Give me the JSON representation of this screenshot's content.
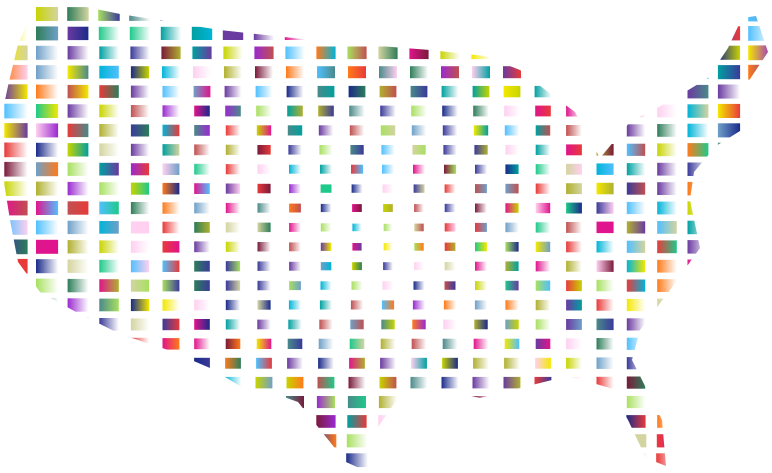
{
  "artwork": {
    "subject": "united-states-map-mosaic",
    "background": "#ffffff",
    "palette": [
      "#e0148c",
      "#1fc98a",
      "#1a2a8a",
      "#00b4d8",
      "#c8d400",
      "#f4e800",
      "#7a1a3a",
      "#2e7d5a",
      "#6fa0c8",
      "#ff7a1a",
      "#9a2ad0",
      "#a8e060",
      "#c05050",
      "#00a0a0",
      "#ffd0f0",
      "#3a3a9a",
      "#d4d4a0",
      "#4a8a8a",
      "#e83a3a",
      "#6a3aa0",
      "#50c0ff",
      "#b0b030"
    ]
  }
}
